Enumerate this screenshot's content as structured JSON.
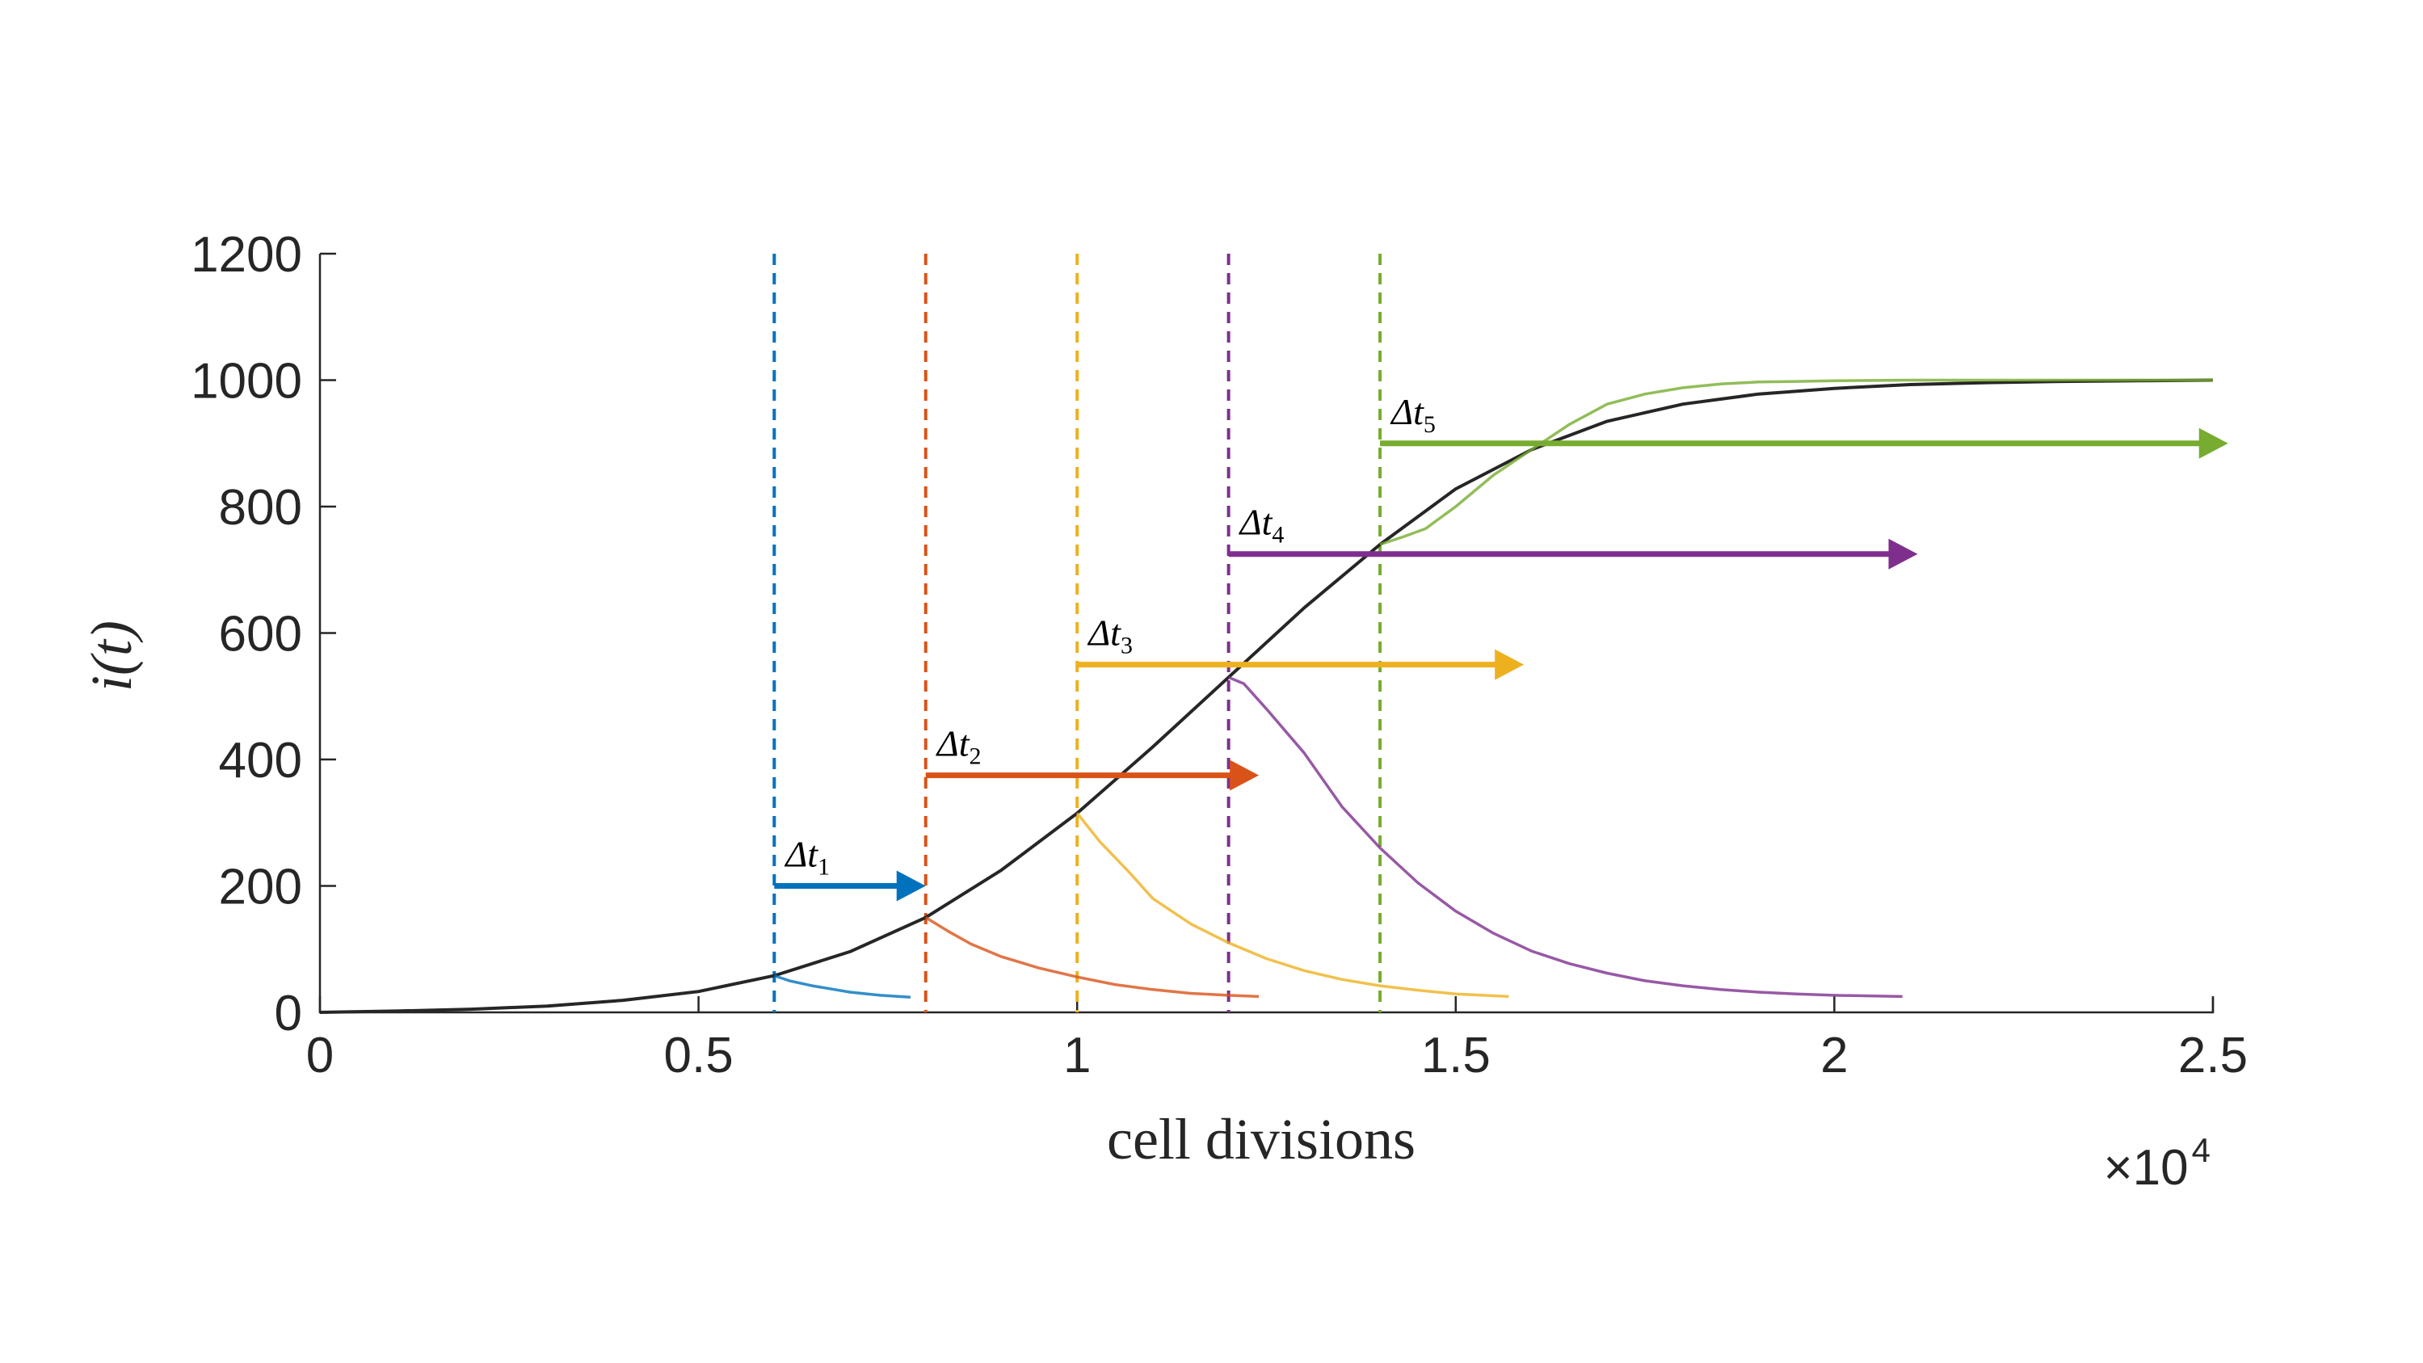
{
  "chart_data": {
    "type": "line",
    "title": "",
    "xlabel": "cell divisions",
    "ylabel": "i(t)",
    "x_exponent_base": "×10",
    "x_exponent_power": "4",
    "xlim": [
      0,
      2.5
    ],
    "ylim": [
      0,
      1200
    ],
    "xticks": [
      0,
      0.5,
      1,
      1.5,
      2,
      2.5
    ],
    "xtick_labels": [
      "0",
      "0.5",
      "1",
      "1.5",
      "2",
      "2.5"
    ],
    "yticks": [
      0,
      200,
      400,
      600,
      800,
      1000,
      1200
    ],
    "ytick_labels": [
      "0",
      "200",
      "400",
      "600",
      "800",
      "1000",
      "1200"
    ],
    "grid": false,
    "series": [
      {
        "color": "#262626",
        "x": [
          0,
          0.1,
          0.2,
          0.3,
          0.4,
          0.5,
          0.6,
          0.7,
          0.8,
          0.9,
          1.0,
          1.1,
          1.2,
          1.3,
          1.4,
          1.5,
          1.6,
          1.7,
          1.8,
          1.9,
          2.0,
          2.1,
          2.2,
          2.3,
          2.4,
          2.5
        ],
        "y": [
          0,
          2,
          5,
          10,
          19,
          33,
          58,
          96,
          150,
          225,
          315,
          420,
          530,
          640,
          740,
          828,
          890,
          935,
          962,
          978,
          987,
          993,
          996,
          998,
          999,
          1000
        ]
      },
      {
        "color": "#0072BD",
        "x": [
          0.6,
          0.62,
          0.65,
          0.68,
          0.7,
          0.74,
          0.78
        ],
        "y": [
          58,
          50,
          42,
          36,
          32,
          27,
          24
        ]
      },
      {
        "color": "#D95319",
        "x": [
          0.8,
          0.83,
          0.86,
          0.9,
          0.95,
          1.0,
          1.05,
          1.1,
          1.15,
          1.2,
          1.24
        ],
        "y": [
          150,
          128,
          108,
          88,
          70,
          56,
          44,
          36,
          30,
          27,
          25
        ]
      },
      {
        "color": "#EDB120",
        "x": [
          1.0,
          1.03,
          1.07,
          1.1,
          1.15,
          1.2,
          1.25,
          1.3,
          1.35,
          1.4,
          1.45,
          1.5,
          1.57
        ],
        "y": [
          315,
          270,
          220,
          180,
          140,
          110,
          85,
          66,
          52,
          42,
          35,
          29,
          25
        ]
      },
      {
        "color": "#7E2F8E",
        "x": [
          1.2,
          1.22,
          1.25,
          1.3,
          1.35,
          1.4,
          1.45,
          1.5,
          1.55,
          1.6,
          1.65,
          1.7,
          1.75,
          1.8,
          1.85,
          1.9,
          1.95,
          2.0,
          2.09
        ],
        "y": [
          530,
          520,
          480,
          410,
          325,
          260,
          205,
          160,
          125,
          97,
          77,
          62,
          50,
          42,
          36,
          32,
          29,
          27,
          25
        ]
      },
      {
        "color": "#77AC30",
        "x": [
          1.4,
          1.43,
          1.46,
          1.5,
          1.55,
          1.6,
          1.65,
          1.7,
          1.75,
          1.8,
          1.85,
          1.9,
          1.95,
          2.0,
          2.1,
          2.2,
          2.3,
          2.4,
          2.5
        ],
        "y": [
          740,
          752,
          765,
          800,
          850,
          890,
          930,
          962,
          978,
          988,
          994,
          997,
          998,
          999,
          1000,
          1000,
          1000,
          1000,
          1000
        ]
      }
    ],
    "vlines": [
      {
        "x": 0.6,
        "color": "#0072BD",
        "style": "dashed"
      },
      {
        "x": 0.8,
        "color": "#D95319",
        "style": "dashed"
      },
      {
        "x": 1.0,
        "color": "#EDB120",
        "style": "dashed"
      },
      {
        "x": 1.2,
        "color": "#7E2F8E",
        "style": "dashed"
      },
      {
        "x": 1.4,
        "color": "#77AC30",
        "style": "dashed"
      }
    ],
    "arrows": [
      {
        "label": "Δt",
        "sub": "1",
        "color": "#0072BD",
        "x_start": 0.6,
        "x_end": 0.8,
        "y": 200
      },
      {
        "label": "Δt",
        "sub": "2",
        "color": "#D95319",
        "x_start": 0.8,
        "x_end": 1.24,
        "y": 375
      },
      {
        "label": "Δt",
        "sub": "3",
        "color": "#EDB120",
        "x_start": 1.0,
        "x_end": 1.59,
        "y": 550
      },
      {
        "label": "Δt",
        "sub": "4",
        "color": "#7E2F8E",
        "x_start": 1.2,
        "x_end": 2.11,
        "y": 725
      },
      {
        "label": "Δt",
        "sub": "5",
        "color": "#77AC30",
        "x_start": 1.4,
        "x_end": 2.52,
        "y": 900
      }
    ]
  }
}
